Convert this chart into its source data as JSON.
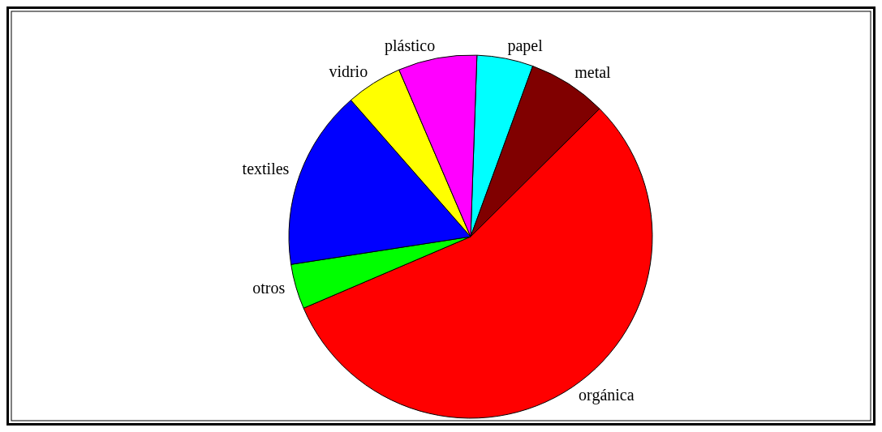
{
  "chart_data": {
    "type": "pie",
    "categories": [
      "papel",
      "metal",
      "orgánica",
      "otros",
      "textiles",
      "vidrio",
      "plástico"
    ],
    "values": [
      5,
      7,
      56,
      4,
      16,
      5,
      7
    ],
    "colors": [
      "#00ffff",
      "#800000",
      "#ff0000",
      "#00ff00",
      "#0000ff",
      "#ffff00",
      "#ff00ff"
    ]
  }
}
